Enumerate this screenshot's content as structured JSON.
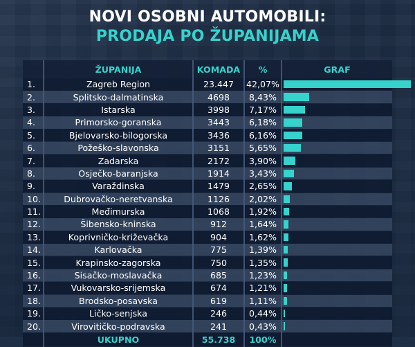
{
  "title_line1": "NOVI OSOBNI AUTOMOBILI:",
  "title_line2": "PRODAJA PO ŽUPANIJAMA",
  "headers": {
    "zupanija": "ŽUPANIJA",
    "komada": "KOMADA",
    "pct": "%",
    "graf": "GRAF"
  },
  "colors": {
    "accent": "#36d3cd",
    "title": "#ffffff"
  },
  "chart_data": {
    "type": "table",
    "title": "NOVI OSOBNI AUTOMOBILI: PRODAJA PO ŽUPANIJAMA",
    "columns": [
      "ŽUPANIJA",
      "KOMADA",
      "%",
      "GRAF"
    ],
    "rows": [
      {
        "rank": "1.",
        "name": "Zagreb Region",
        "units": "23.447",
        "pct": "42,07%",
        "value": 42.07
      },
      {
        "rank": "2.",
        "name": "Splitsko-dalmatinska",
        "units": "4698",
        "pct": "8,43%",
        "value": 8.43
      },
      {
        "rank": "3.",
        "name": "Istarska",
        "units": "3998",
        "pct": "7,17%",
        "value": 7.17
      },
      {
        "rank": "4.",
        "name": "Primorsko-goranska",
        "units": "3443",
        "pct": "6,18%",
        "value": 6.18
      },
      {
        "rank": "5.",
        "name": "Bjelovarsko-bilogorska",
        "units": "3436",
        "pct": "6,16%",
        "value": 6.16
      },
      {
        "rank": "6.",
        "name": "Požeško-slavonska",
        "units": "3151",
        "pct": "5,65%",
        "value": 5.65
      },
      {
        "rank": "7.",
        "name": "Zadarska",
        "units": "2172",
        "pct": "3,90%",
        "value": 3.9
      },
      {
        "rank": "8.",
        "name": "Osječko-baranjska",
        "units": "1914",
        "pct": "3,43%",
        "value": 3.43
      },
      {
        "rank": "9.",
        "name": "Varaždinska",
        "units": "1479",
        "pct": "2,65%",
        "value": 2.65
      },
      {
        "rank": "10.",
        "name": "Dubrovačko-neretvanska",
        "units": "1126",
        "pct": "2,02%",
        "value": 2.02
      },
      {
        "rank": "11.",
        "name": "Međimurska",
        "units": "1068",
        "pct": "1,92%",
        "value": 1.92
      },
      {
        "rank": "12.",
        "name": "Šibensko-kninska",
        "units": "912",
        "pct": "1,64%",
        "value": 1.64
      },
      {
        "rank": "13.",
        "name": "Koprivničko-križevačka",
        "units": "904",
        "pct": "1,62%",
        "value": 1.62
      },
      {
        "rank": "14.",
        "name": "Karlovačka",
        "units": "775",
        "pct": "1,39%",
        "value": 1.39
      },
      {
        "rank": "15.",
        "name": "Krapinsko-zagorska",
        "units": "750",
        "pct": "1,35%",
        "value": 1.35
      },
      {
        "rank": "16.",
        "name": "Sisačko-moslavačka",
        "units": "685",
        "pct": "1,23%",
        "value": 1.23
      },
      {
        "rank": "17.",
        "name": "Vukovarsko-srijemska",
        "units": "674",
        "pct": "1,21%",
        "value": 1.21
      },
      {
        "rank": "18.",
        "name": "Brodsko-posavska",
        "units": "619",
        "pct": "1,11%",
        "value": 1.11
      },
      {
        "rank": "19.",
        "name": "Ličko-senjska",
        "units": "246",
        "pct": "0,44%",
        "value": 0.44
      },
      {
        "rank": "20.",
        "name": "Virovitičko-podravska",
        "units": "241",
        "pct": "0,43%",
        "value": 0.43
      }
    ],
    "total": {
      "label": "UKUPNO",
      "units": "55.738",
      "pct": "100%"
    },
    "max_value": 42.07
  }
}
